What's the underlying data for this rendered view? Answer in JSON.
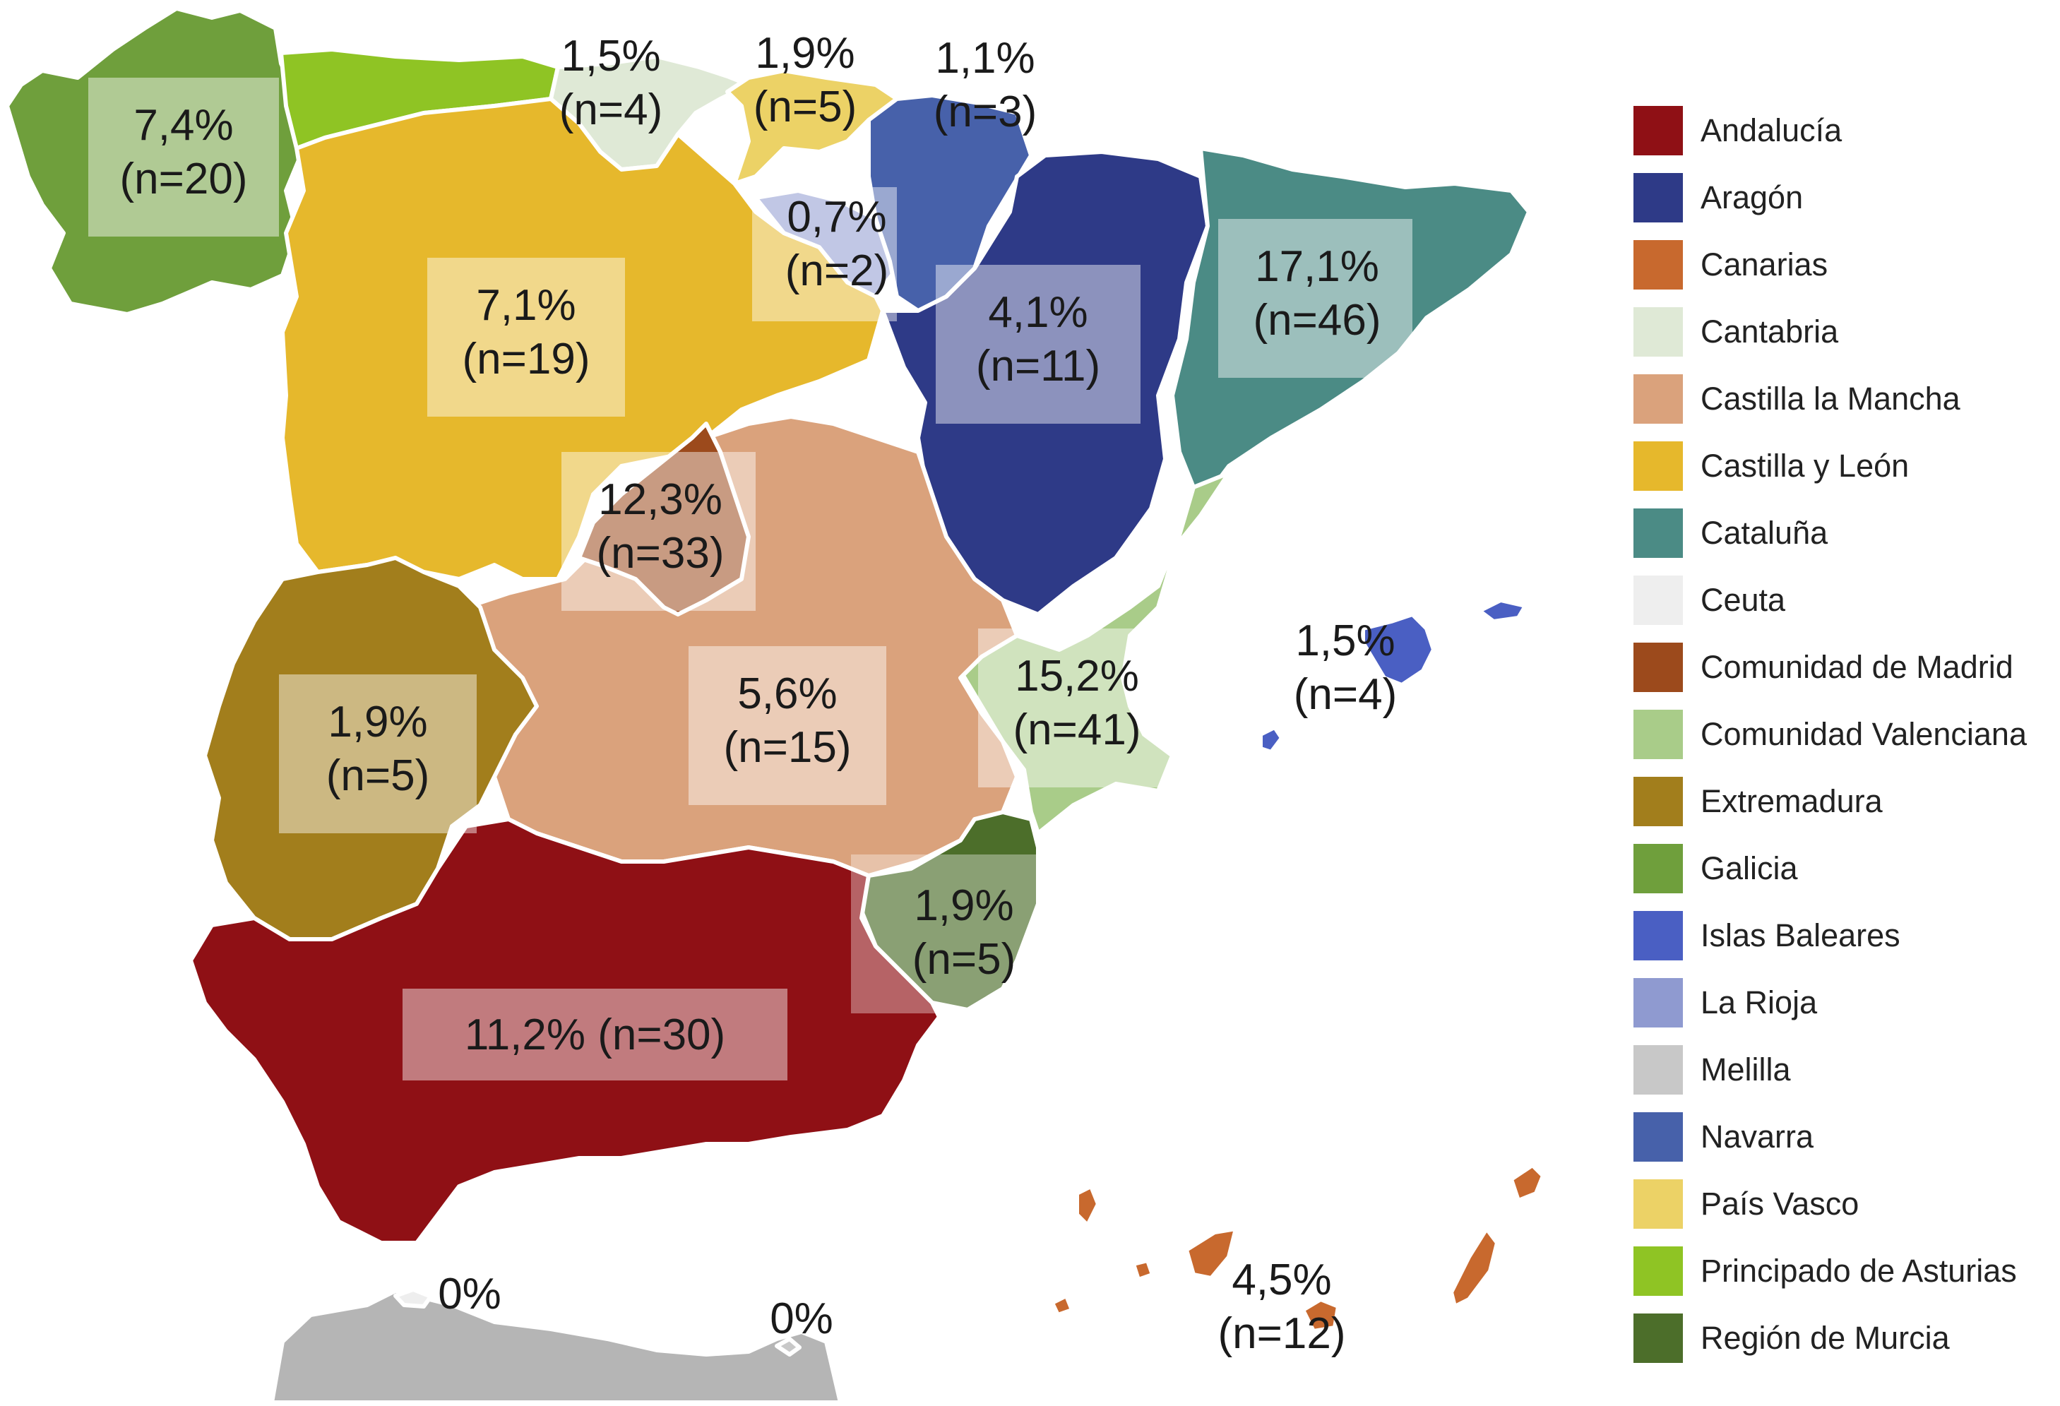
{
  "colors": {
    "andalucia": "#8f1015",
    "aragon": "#2e3a87",
    "canarias": "#c8692e",
    "cantabria": "#dfe9d6",
    "castilla_la_mancha": "#daa27c",
    "castilla_y_leon": "#e6b82c",
    "cataluna": "#4b8b85",
    "ceuta": "#eeeeee",
    "comunidad_de_madrid": "#9c4a1c",
    "comunidad_valenciana": "#a9cc89",
    "extremadura": "#a27e1c",
    "galicia": "#6f9f3c",
    "islas_baleares": "#4a5fc3",
    "la_rioja": "#8f9ad0",
    "melilla": "#c8c8c8",
    "navarra": "#4761aa",
    "pais_vasco": "#ecd266",
    "asturias": "#8fc424",
    "murcia": "#4c6e2a",
    "africa_coast": "#b5b5b5",
    "region_border": "#ffffff"
  },
  "map_labels": [
    {
      "id": "galicia",
      "line1": "7,4%",
      "line2": "(n=20)"
    },
    {
      "id": "cantabria",
      "line1": "1,5%",
      "line2": "(n=4)"
    },
    {
      "id": "pais_vasco",
      "line1": "1,9%",
      "line2": "(n=5)"
    },
    {
      "id": "navarra",
      "line1": "1,1%",
      "line2": "(n=3)"
    },
    {
      "id": "la_rioja",
      "line1": "0,7%",
      "line2": "(n=2)"
    },
    {
      "id": "castilla_y_leon",
      "line1": "7,1%",
      "line2": "(n=19)"
    },
    {
      "id": "aragon",
      "line1": "4,1%",
      "line2": "(n=11)"
    },
    {
      "id": "cataluna",
      "line1": "17,1%",
      "line2": "(n=46)"
    },
    {
      "id": "madrid",
      "line1": "12,3%",
      "line2": "(n=33)"
    },
    {
      "id": "extremadura",
      "line1": "1,9%",
      "line2": "(n=5)"
    },
    {
      "id": "castilla_la_mancha",
      "line1": "5,6%",
      "line2": "(n=15)"
    },
    {
      "id": "valenciana",
      "line1": "15,2%",
      "line2": "(n=41)"
    },
    {
      "id": "baleares",
      "line1": "1,5%",
      "line2": "(n=4)"
    },
    {
      "id": "murcia",
      "line1": "1,9%",
      "line2": "(n=5)"
    },
    {
      "id": "andalucia",
      "line1": "11,2% (n=30)",
      "line2": ""
    },
    {
      "id": "ceuta",
      "line1": "0%",
      "line2": ""
    },
    {
      "id": "melilla",
      "line1": "0%",
      "line2": ""
    },
    {
      "id": "canarias",
      "line1": "4,5%",
      "line2": "(n=12)"
    }
  ],
  "legend": [
    {
      "label": "Andalucía",
      "color": "#8f1015"
    },
    {
      "label": "Aragón",
      "color": "#2e3a87"
    },
    {
      "label": "Canarias",
      "color": "#c8692e"
    },
    {
      "label": "Cantabria",
      "color": "#dfe9d6"
    },
    {
      "label": "Castilla la Mancha",
      "color": "#daa27c"
    },
    {
      "label": "Castilla y León",
      "color": "#e6b82c"
    },
    {
      "label": "Cataluña",
      "color": "#4b8b85"
    },
    {
      "label": "Ceuta",
      "color": "#eeeeee"
    },
    {
      "label": "Comunidad de Madrid",
      "color": "#9c4a1c"
    },
    {
      "label": "Comunidad Valenciana",
      "color": "#a9cc89"
    },
    {
      "label": "Extremadura",
      "color": "#a27e1c"
    },
    {
      "label": "Galicia",
      "color": "#6f9f3c"
    },
    {
      "label": "Islas Baleares",
      "color": "#4a5fc3"
    },
    {
      "label": "La Rioja",
      "color": "#8f9ad0"
    },
    {
      "label": "Melilla",
      "color": "#c8c8c8"
    },
    {
      "label": "Navarra",
      "color": "#4761aa"
    },
    {
      "label": "País Vasco",
      "color": "#ecd266"
    },
    {
      "label": "Principado de Asturias",
      "color": "#8fc424"
    },
    {
      "label": "Región de Murcia",
      "color": "#4c6e2a"
    }
  ]
}
